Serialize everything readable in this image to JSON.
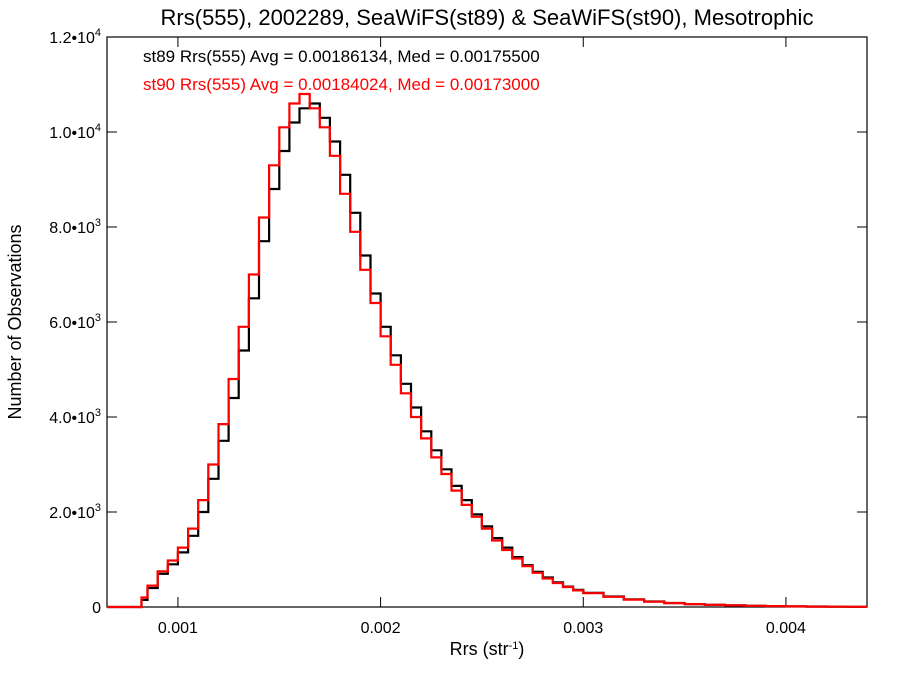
{
  "chart_data": {
    "type": "line",
    "title": "Rrs(555), 2002289, SeaWiFS(st89) & SeaWiFS(st90), Mesotrophic",
    "xlabel": "Rrs (str",
    "xlabel_sup": "-1",
    "xlabel_tail": ")",
    "ylabel": "Number of Observations",
    "xlim": [
      0.00065,
      0.0044
    ],
    "ylim": [
      0,
      12000
    ],
    "grid": false,
    "x_ticks": [
      {
        "value": 0.001,
        "label": "0.001"
      },
      {
        "value": 0.002,
        "label": "0.002"
      },
      {
        "value": 0.003,
        "label": "0.003"
      },
      {
        "value": 0.004,
        "label": "0.004"
      }
    ],
    "y_ticks": [
      {
        "value": 0,
        "mant": "0",
        "exp": ""
      },
      {
        "value": 2000,
        "mant": "2.0•10",
        "exp": "3"
      },
      {
        "value": 4000,
        "mant": "4.0•10",
        "exp": "3"
      },
      {
        "value": 6000,
        "mant": "6.0•10",
        "exp": "3"
      },
      {
        "value": 8000,
        "mant": "8.0•10",
        "exp": "3"
      },
      {
        "value": 10000,
        "mant": "1.0•10",
        "exp": "4"
      },
      {
        "value": 12000,
        "mant": "1.2•10",
        "exp": "4"
      }
    ],
    "legend": [
      {
        "text": "st89 Rrs(555) Avg = 0.00186134, Med = 0.00175500",
        "color": "#000000"
      },
      {
        "text": "st90 Rrs(555) Avg = 0.00184024, Med = 0.00173000",
        "color": "#ff0000"
      }
    ],
    "legend_position": "top-left",
    "series": [
      {
        "color": "#000000",
        "x": [
          0.00065,
          0.0007,
          0.00075,
          0.0008,
          0.00082,
          0.00085,
          0.0009,
          0.00095,
          0.001,
          0.00105,
          0.0011,
          0.00115,
          0.0012,
          0.00125,
          0.0013,
          0.00135,
          0.0014,
          0.00145,
          0.0015,
          0.00155,
          0.0016,
          0.00165,
          0.0017,
          0.00175,
          0.0018,
          0.00185,
          0.0019,
          0.00195,
          0.002,
          0.00205,
          0.0021,
          0.00215,
          0.0022,
          0.00225,
          0.0023,
          0.00235,
          0.0024,
          0.00245,
          0.0025,
          0.00255,
          0.0026,
          0.00265,
          0.0027,
          0.00275,
          0.0028,
          0.00285,
          0.0029,
          0.00295,
          0.003,
          0.0031,
          0.0032,
          0.0033,
          0.0034,
          0.0035,
          0.0036,
          0.0037,
          0.0038,
          0.0039,
          0.004,
          0.0041,
          0.0042,
          0.0043,
          0.0044
        ],
        "y": [
          0,
          0,
          0,
          0,
          150,
          400,
          700,
          900,
          1150,
          1500,
          2000,
          2700,
          3500,
          4400,
          5400,
          6500,
          7700,
          8800,
          9600,
          10200,
          10500,
          10600,
          10300,
          9800,
          9100,
          8300,
          7400,
          6600,
          5900,
          5300,
          4700,
          4200,
          3700,
          3300,
          2900,
          2550,
          2250,
          1950,
          1700,
          1450,
          1250,
          1050,
          880,
          740,
          620,
          520,
          430,
          360,
          300,
          220,
          160,
          115,
          85,
          62,
          45,
          34,
          26,
          19,
          14,
          10,
          7,
          5,
          4
        ]
      },
      {
        "color": "#ff0000",
        "x": [
          0.00065,
          0.0007,
          0.00075,
          0.0008,
          0.00082,
          0.00085,
          0.0009,
          0.00095,
          0.001,
          0.00105,
          0.0011,
          0.00115,
          0.0012,
          0.00125,
          0.0013,
          0.00135,
          0.0014,
          0.00145,
          0.0015,
          0.00155,
          0.0016,
          0.00165,
          0.0017,
          0.00175,
          0.0018,
          0.00185,
          0.0019,
          0.00195,
          0.002,
          0.00205,
          0.0021,
          0.00215,
          0.0022,
          0.00225,
          0.0023,
          0.00235,
          0.0024,
          0.00245,
          0.0025,
          0.00255,
          0.0026,
          0.00265,
          0.0027,
          0.00275,
          0.0028,
          0.00285,
          0.0029,
          0.00295,
          0.003,
          0.0031,
          0.0032,
          0.0033,
          0.0034,
          0.0035,
          0.0036,
          0.0037,
          0.0038,
          0.0039,
          0.004,
          0.0041,
          0.0042,
          0.0043,
          0.0044
        ],
        "y": [
          0,
          0,
          0,
          0,
          200,
          450,
          750,
          980,
          1250,
          1650,
          2250,
          3000,
          3850,
          4800,
          5900,
          7000,
          8200,
          9300,
          10100,
          10600,
          10800,
          10500,
          10100,
          9500,
          8700,
          7900,
          7100,
          6400,
          5700,
          5100,
          4500,
          4000,
          3550,
          3150,
          2800,
          2450,
          2150,
          1900,
          1650,
          1400,
          1200,
          1020,
          860,
          720,
          600,
          505,
          420,
          350,
          290,
          215,
          155,
          112,
          82,
          60,
          44,
          33,
          25,
          18,
          13,
          9,
          7,
          5,
          4
        ]
      }
    ]
  }
}
